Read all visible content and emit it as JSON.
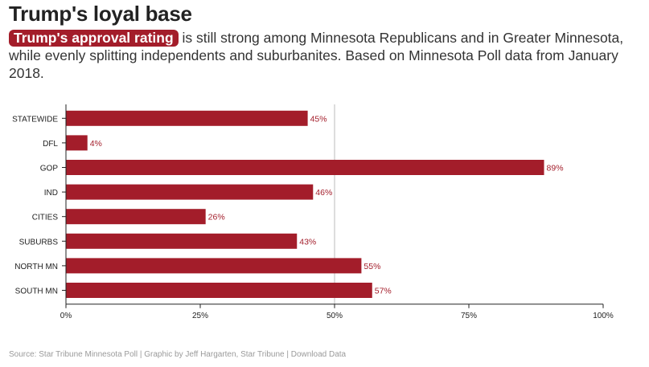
{
  "title": "Trump's loyal base",
  "subtitle": {
    "highlight": "Trump's approval rating",
    "text": " is still strong among Minnesota Republicans and in Greater Minnesota, while evenly splitting independents and suburbanites. Based on Minnesota Poll data from January 2018."
  },
  "colors": {
    "bar": "#a31d2a",
    "label": "#a31d2a",
    "axis": "#222222",
    "refline": "#bbbbbb"
  },
  "chart_data": {
    "type": "bar",
    "orientation": "horizontal",
    "categories": [
      "STATEWIDE",
      "DFL",
      "GOP",
      "IND",
      "CITIES",
      "SUBURBS",
      "NORTH MN",
      "SOUTH MN"
    ],
    "values": [
      45,
      4,
      89,
      46,
      26,
      43,
      55,
      57
    ],
    "value_labels": [
      "45%",
      "4%",
      "89%",
      "46%",
      "26%",
      "43%",
      "55%",
      "57%"
    ],
    "xlim": [
      0,
      100
    ],
    "xticks": [
      0,
      25,
      50,
      75,
      100
    ],
    "xtick_labels": [
      "0%",
      "25%",
      "50%",
      "75%",
      "100%"
    ],
    "reference_line": 50,
    "grid": false
  },
  "footer": {
    "source": "Source: Star Tribune Minnesota Poll | Graphic by Jeff Hargarten, Star Tribune | Download Data"
  }
}
